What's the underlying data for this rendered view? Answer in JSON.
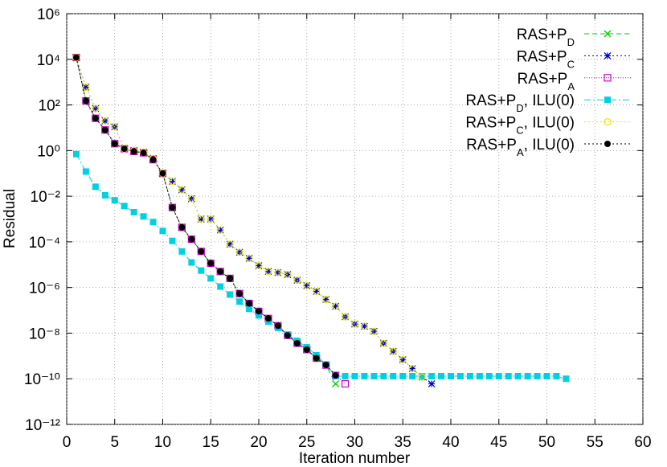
{
  "chart_data": {
    "type": "line",
    "x_label": "Iteration number",
    "y_label": "Residual",
    "xlim": [
      0,
      60
    ],
    "xticks": [
      0,
      5,
      10,
      15,
      20,
      25,
      30,
      35,
      40,
      45,
      50,
      55,
      60
    ],
    "ylim": [
      1e-12,
      1000000
    ],
    "yscale": "log",
    "grid": true,
    "legend": "top-right",
    "yticks": [
      {
        "value": 1e-12,
        "label": "10⁻¹²"
      },
      {
        "value": 1e-10,
        "label": "10⁻¹⁰"
      },
      {
        "value": 1e-08,
        "label": "10⁻⁸"
      },
      {
        "value": 1e-06,
        "label": "10⁻⁶"
      },
      {
        "value": 0.0001,
        "label": "10⁻⁴"
      },
      {
        "value": 0.01,
        "label": "10⁻²"
      },
      {
        "value": 1,
        "label": "10⁰"
      },
      {
        "value": 100,
        "label": "10²"
      },
      {
        "value": 10000,
        "label": "10⁴"
      },
      {
        "value": 1000000,
        "label": "10⁶"
      }
    ],
    "series": [
      {
        "name": "RAS+P",
        "name_sub": "D",
        "color": "#00c800",
        "dash": "6,4",
        "marker": "x",
        "x": [
          1,
          2,
          3,
          4,
          5,
          6,
          7,
          8,
          9,
          10,
          11,
          12,
          13,
          14,
          15,
          16,
          17,
          18,
          19,
          20,
          21,
          22,
          23,
          24,
          25,
          26,
          27,
          28
        ],
        "values": [
          12000,
          150,
          26,
          8,
          2,
          1.2,
          0.92,
          0.8,
          0.4,
          0.1,
          0.0032,
          0.00043,
          0.00013,
          3.8e-05,
          1.15e-05,
          5e-06,
          2.5e-06,
          5.4e-07,
          2e-07,
          9e-08,
          4.4e-08,
          2.1e-08,
          8e-09,
          3.6e-09,
          1.9e-09,
          8e-10,
          4e-10,
          6e-11
        ]
      },
      {
        "name": "RAS+P",
        "name_sub": "C",
        "color": "#0000c8",
        "dash": "2,3",
        "marker": "star",
        "x": [
          1,
          2,
          3,
          4,
          5,
          6,
          7,
          8,
          9,
          10,
          11,
          12,
          13,
          14,
          15,
          16,
          17,
          18,
          19,
          20,
          21,
          22,
          23,
          24,
          25,
          26,
          27,
          28,
          29,
          30,
          31,
          32,
          33,
          34,
          35,
          36,
          37,
          38
        ],
        "values": [
          12000,
          600,
          70,
          20,
          11,
          1.2,
          1,
          0.85,
          0.45,
          0.1,
          0.045,
          0.019,
          0.0078,
          0.001,
          0.001,
          0.00033,
          7.9e-05,
          3.5e-05,
          1.9e-05,
          9e-06,
          5.1e-06,
          4.5e-06,
          3.7e-06,
          2.1e-06,
          1.2e-06,
          6.8e-07,
          3e-07,
          1.5e-07,
          5.2e-08,
          2.5e-08,
          2e-08,
          1.2e-08,
          3.6e-09,
          1.6e-09,
          6.8e-10,
          2.8e-10,
          1.2e-10,
          6e-11
        ]
      },
      {
        "name": "RAS+P",
        "name_sub": "A",
        "color": "#c800c8",
        "dash": "1,2",
        "marker": "square-open",
        "x": [
          1,
          2,
          3,
          4,
          5,
          6,
          7,
          8,
          9,
          10,
          11,
          12,
          13,
          14,
          15,
          16,
          17,
          18,
          19,
          20,
          21,
          22,
          23,
          24,
          25,
          26,
          27,
          28,
          29
        ],
        "values": [
          12000,
          150,
          26,
          8,
          2,
          1.2,
          0.92,
          0.8,
          0.4,
          0.1,
          0.0032,
          0.00043,
          0.00013,
          3.8e-05,
          1.15e-05,
          5e-06,
          2.5e-06,
          5.4e-07,
          2e-07,
          9e-08,
          4.4e-08,
          2.1e-08,
          8e-09,
          3.6e-09,
          1.9e-09,
          8e-10,
          4e-10,
          1.4e-10,
          6e-11
        ]
      },
      {
        "name": "RAS+P",
        "name_sub": "D",
        "name_suffix": ", ILU(0)",
        "color": "#00d0e0",
        "dash": "8,3,2,3",
        "marker": "square",
        "x": [
          1,
          2,
          3,
          4,
          5,
          6,
          7,
          8,
          9,
          10,
          11,
          12,
          13,
          14,
          15,
          16,
          17,
          18,
          19,
          20,
          21,
          22,
          23,
          24,
          25,
          26,
          27,
          28,
          29,
          30,
          31,
          32,
          33,
          34,
          35,
          36,
          37,
          38,
          39,
          40,
          41,
          42,
          43,
          44,
          45,
          46,
          47,
          48,
          49,
          50,
          51,
          52
        ],
        "values": [
          0.7,
          0.12,
          0.026,
          0.011,
          0.0066,
          0.0037,
          0.002,
          0.0013,
          0.00074,
          0.0003,
          0.00011,
          3.8e-05,
          1.25e-05,
          5.5e-06,
          2.5e-06,
          1.1e-06,
          4.9e-07,
          2.4e-07,
          1.15e-07,
          6e-08,
          3.2e-08,
          1.7e-08,
          8.7e-09,
          4.6e-09,
          2.4e-09,
          1.07e-09,
          4.1e-10,
          1.3e-10,
          1.3e-10,
          1.3e-10,
          1.3e-10,
          1.3e-10,
          1.3e-10,
          1.3e-10,
          1.3e-10,
          1.3e-10,
          1.3e-10,
          1.3e-10,
          1.3e-10,
          1.3e-10,
          1.3e-10,
          1.3e-10,
          1.3e-10,
          1.3e-10,
          1.3e-10,
          1.3e-10,
          1.3e-10,
          1.3e-10,
          1.3e-10,
          1.3e-10,
          1.3e-10,
          1e-10
        ]
      },
      {
        "name": "RAS+P",
        "name_sub": "C",
        "name_suffix": ", ILU(0)",
        "color": "#e8e800",
        "dash": "2,3",
        "marker": "circle-open",
        "x": [
          1,
          2,
          3,
          4,
          5,
          6,
          7,
          8,
          9,
          10,
          11,
          12,
          13,
          14,
          15,
          16,
          17,
          18,
          19,
          20,
          21,
          22,
          23,
          24,
          25,
          26,
          27,
          28,
          29,
          30,
          31,
          32,
          33,
          34,
          35,
          36,
          37
        ],
        "values": [
          12000,
          600,
          70,
          20,
          11,
          1.2,
          1,
          0.85,
          0.45,
          0.1,
          0.045,
          0.019,
          0.0078,
          0.001,
          0.001,
          0.00033,
          7.9e-05,
          3.5e-05,
          1.9e-05,
          9e-06,
          5.1e-06,
          4.5e-06,
          3.7e-06,
          2.1e-06,
          1.2e-06,
          6.8e-07,
          3e-07,
          1.5e-07,
          5.2e-08,
          2.5e-08,
          2e-08,
          1.2e-08,
          3.6e-09,
          1.6e-09,
          6.8e-10,
          2.8e-10,
          1.2e-10
        ]
      },
      {
        "name": "RAS+P",
        "name_sub": "A",
        "name_suffix": ", ILU(0)",
        "color": "#000000",
        "dash": "2,3",
        "marker": "circle",
        "x": [
          1,
          2,
          3,
          4,
          5,
          6,
          7,
          8,
          9,
          10,
          11,
          12,
          13,
          14,
          15,
          16,
          17,
          18,
          19,
          20,
          21,
          22,
          23,
          24,
          25,
          26,
          27,
          28
        ],
        "values": [
          12000,
          150,
          26,
          8,
          2,
          1.2,
          0.92,
          0.8,
          0.4,
          0.1,
          0.0032,
          0.00043,
          0.00013,
          3.8e-05,
          1.15e-05,
          5e-06,
          2.5e-06,
          5.4e-07,
          2e-07,
          9e-08,
          4.4e-08,
          2.1e-08,
          8e-09,
          3.6e-09,
          1.9e-09,
          8e-10,
          4e-10,
          1.4e-10
        ]
      }
    ]
  }
}
